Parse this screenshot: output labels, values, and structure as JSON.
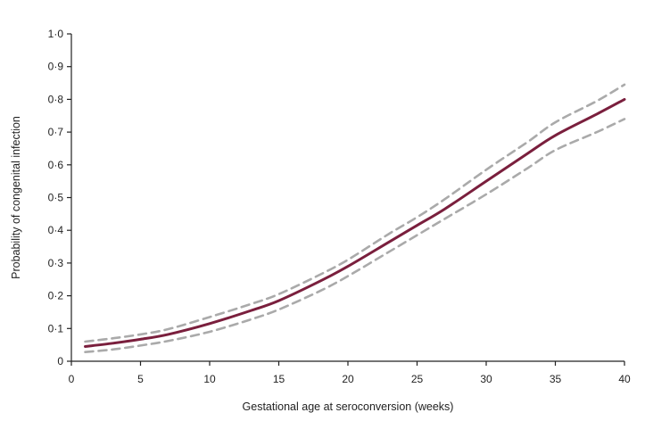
{
  "chart_data": {
    "type": "line",
    "xlabel": "Gestational age at seroconversion (weeks)",
    "ylabel": "Probability of congenital infection",
    "xlim": [
      0,
      40
    ],
    "ylim": [
      0,
      1.0
    ],
    "x_ticks": [
      0,
      5,
      10,
      15,
      20,
      25,
      30,
      35,
      40
    ],
    "x_tick_labels": [
      "0",
      "5",
      "10",
      "15",
      "20",
      "25",
      "30",
      "35",
      "40"
    ],
    "y_ticks": [
      0,
      0.1,
      0.2,
      0.3,
      0.4,
      0.5,
      0.6,
      0.7,
      0.8,
      0.9,
      1.0
    ],
    "y_tick_labels": [
      "0",
      "0·1",
      "0·2",
      "0·3",
      "0·4",
      "0·5",
      "0·6",
      "0·7",
      "0·8",
      "0·9",
      "1·0"
    ],
    "grid": false,
    "x": [
      1,
      3,
      5,
      7,
      10,
      13,
      15,
      18,
      20,
      23,
      25,
      27,
      30,
      33,
      35,
      38,
      40
    ],
    "series": [
      {
        "style": "solid",
        "color": "#7a1f3d",
        "values": [
          0.045,
          0.055,
          0.067,
          0.082,
          0.115,
          0.155,
          0.185,
          0.245,
          0.29,
          0.365,
          0.415,
          0.465,
          0.55,
          0.635,
          0.69,
          0.755,
          0.8
        ]
      },
      {
        "style": "dashed",
        "color": "#aaaaaa",
        "values": [
          0.06,
          0.07,
          0.082,
          0.098,
          0.135,
          0.175,
          0.205,
          0.265,
          0.31,
          0.39,
          0.44,
          0.495,
          0.585,
          0.67,
          0.73,
          0.795,
          0.845
        ]
      },
      {
        "style": "dashed",
        "color": "#aaaaaa",
        "values": [
          0.028,
          0.036,
          0.048,
          0.062,
          0.09,
          0.128,
          0.158,
          0.215,
          0.26,
          0.335,
          0.385,
          0.435,
          0.51,
          0.59,
          0.645,
          0.7,
          0.74
        ]
      }
    ]
  }
}
